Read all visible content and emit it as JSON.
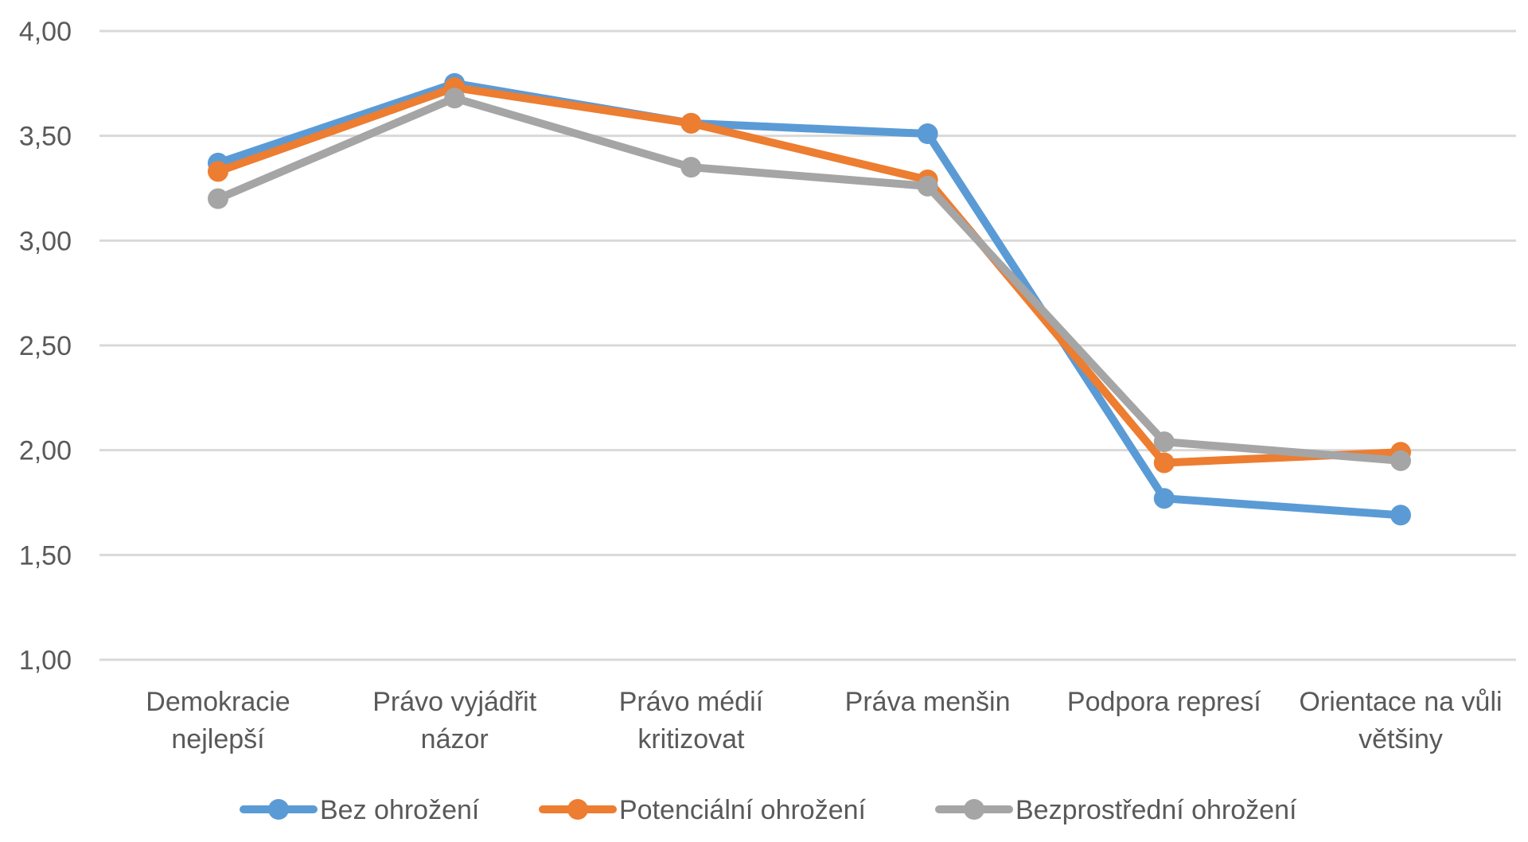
{
  "chart_data": {
    "type": "line",
    "categories": [
      [
        "Demokracie",
        "nejlepší"
      ],
      [
        "Právo vyjádřit",
        "názor"
      ],
      [
        "Právo médií",
        "kritizovat"
      ],
      [
        "Práva menšin"
      ],
      [
        "Podpora represí"
      ],
      [
        "Orientace na vůli",
        "většiny"
      ]
    ],
    "series": [
      {
        "name": "Bez ohrožení",
        "color": "#5b9bd5",
        "values": [
          3.37,
          3.75,
          3.56,
          3.51,
          1.77,
          1.69
        ]
      },
      {
        "name": "Potenciální ohrožení",
        "color": "#ed7d31",
        "values": [
          3.33,
          3.73,
          3.56,
          3.29,
          1.94,
          1.99
        ]
      },
      {
        "name": "Bezprostřední ohrožení",
        "color": "#a5a5a5",
        "values": [
          3.2,
          3.68,
          3.35,
          3.26,
          2.04,
          1.95
        ]
      }
    ],
    "y_ticks": [
      "1,00",
      "1,50",
      "2,00",
      "2,50",
      "3,00",
      "3,50",
      "4,00"
    ],
    "ylim": [
      1.0,
      4.0
    ],
    "grid": true,
    "legend_position": "bottom"
  }
}
